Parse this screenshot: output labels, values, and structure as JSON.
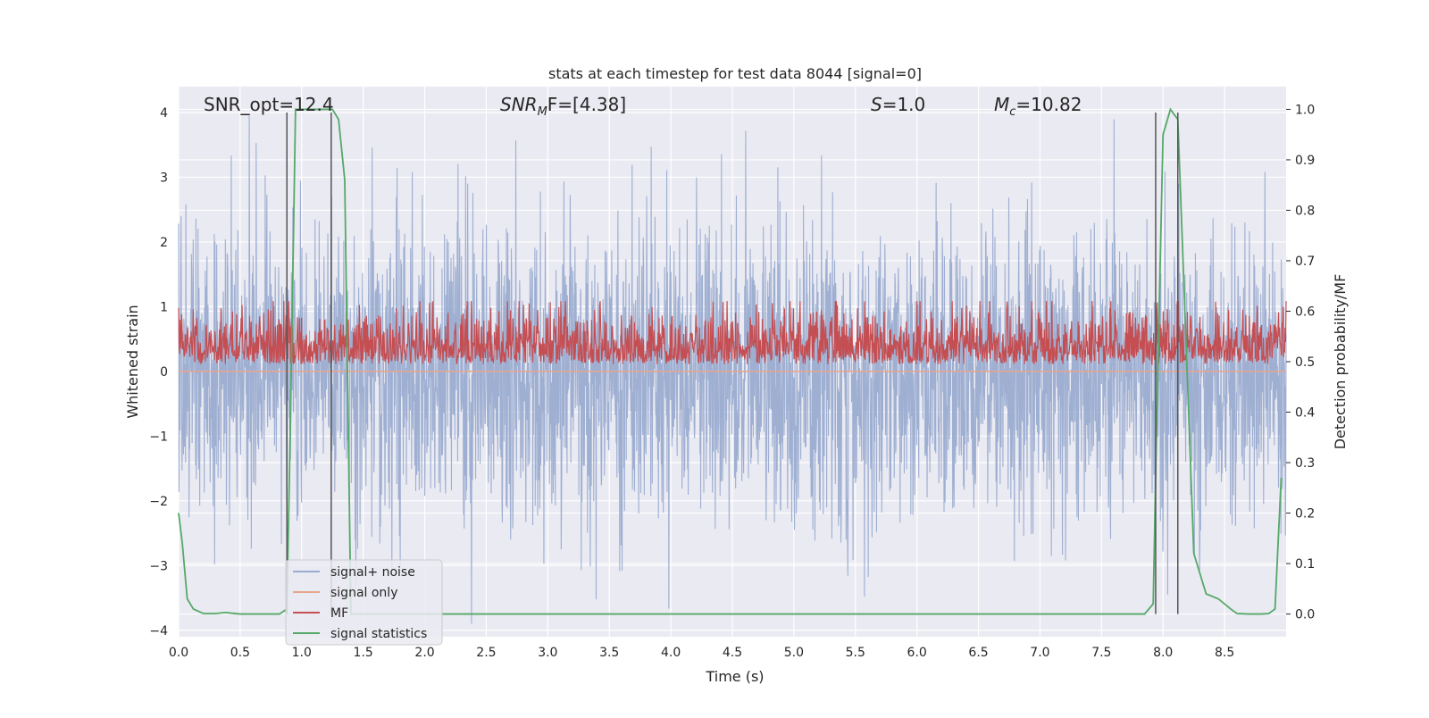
{
  "chart_data": {
    "type": "line",
    "title": "stats at each timestep for test data 8044 [signal=0]",
    "xlabel": "Time (s)",
    "ylabel_left": "Whitened strain",
    "ylabel_right": "Detection probability/MF",
    "xlim": [
      0,
      9.0
    ],
    "ylim_left": [
      -4.1,
      4.4
    ],
    "ylim_right": [
      -0.045,
      1.045
    ],
    "xticks": [
      "0.0",
      "0.5",
      "1.0",
      "1.5",
      "2.0",
      "2.5",
      "3.0",
      "3.5",
      "4.0",
      "4.5",
      "5.0",
      "5.5",
      "6.0",
      "6.5",
      "7.0",
      "7.5",
      "8.0",
      "8.5"
    ],
    "yticks_left": [
      "−4",
      "−3",
      "−2",
      "−1",
      "0",
      "1",
      "2",
      "3",
      "4"
    ],
    "yticks_right": [
      "0.0",
      "0.1",
      "0.2",
      "0.3",
      "0.4",
      "0.5",
      "0.6",
      "0.7",
      "0.8",
      "0.9",
      "1.0"
    ],
    "grid": true,
    "legend_position": "lower-left",
    "annotations": {
      "snr_opt": "SNR_opt=12.4",
      "snr_mf_sym": "SNR",
      "snr_mf_sub": "M",
      "snr_mf_rest": "F=[4.38]",
      "s_sym": "S",
      "s_rest": "=1.0",
      "mc_sym": "M",
      "mc_sub": "c",
      "mc_rest": "=10.82"
    },
    "series": [
      {
        "name": "signal+ noise",
        "color": "#9aacd0",
        "axis": "left",
        "style": "noise",
        "amplitude": 2.7
      },
      {
        "name": "signal only",
        "color": "#e8a58c",
        "axis": "left",
        "values_constant": 0.0
      },
      {
        "name": "MF",
        "color": "#c44e52",
        "axis": "right",
        "style": "noise",
        "baseline": 0.5,
        "amplitude": 0.08
      },
      {
        "name": "signal statistics",
        "color": "#55a868",
        "axis": "right",
        "x": [
          0.0,
          0.03,
          0.07,
          0.12,
          0.2,
          0.3,
          0.38,
          0.5,
          0.65,
          0.82,
          0.88,
          0.91,
          0.95,
          1.0,
          1.25,
          1.3,
          1.35,
          1.4,
          1.45,
          1.6,
          2.0,
          3.0,
          4.0,
          5.0,
          6.0,
          7.0,
          7.5,
          7.85,
          7.92,
          7.95,
          8.0,
          8.06,
          8.12,
          8.17,
          8.25,
          8.35,
          8.45,
          8.55,
          8.6,
          8.7,
          8.8,
          8.86,
          8.91,
          8.96
        ],
        "values": [
          0.2,
          0.14,
          0.03,
          0.01,
          0.001,
          0.001,
          0.003,
          0.0,
          0.0,
          0.0,
          0.01,
          0.4,
          1.0,
          1.0,
          1.0,
          0.98,
          0.86,
          0.0,
          0.0,
          0.0,
          0.0,
          0.0,
          0.0,
          0.0,
          0.0,
          0.0,
          0.0,
          0.0,
          0.02,
          0.4,
          0.95,
          1.0,
          0.98,
          0.65,
          0.12,
          0.04,
          0.03,
          0.01,
          0.001,
          0.0,
          0.0,
          0.001,
          0.01,
          0.27
        ]
      }
    ],
    "vertical_lines": [
      0.88,
      1.24,
      7.94,
      8.12
    ]
  }
}
